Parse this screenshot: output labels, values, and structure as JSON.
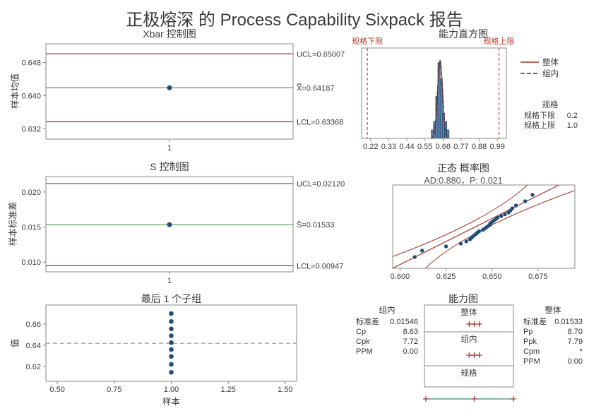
{
  "title": "正极熔深 的 Process Capability Sixpack 报告",
  "colors": {
    "limit_line": "#a93226",
    "center_line": "#4f9a5e",
    "point": "#1f4e79",
    "bar_fill": "#5b87b5",
    "bar_edge": "#27496d",
    "spec": "#c0392b",
    "curve_overall": "#a93226",
    "curve_within": "#3a3a3a",
    "band": "#a93226",
    "interval": "#a93226",
    "spec_line": "#3d8a8a",
    "axis": "#8a8a8a",
    "text": "#3b3b3b"
  },
  "chart_data": [
    {
      "id": "xbar",
      "type": "line",
      "title": "Xbar 控制图",
      "ylabel": "样本均值",
      "ylim": [
        0.6295,
        0.6525
      ],
      "lines": [
        {
          "name": "UCL",
          "role": "limit",
          "value": 0.65007,
          "label": "UCL=0.65007"
        },
        {
          "name": "CL",
          "role": "center",
          "value": 0.64187,
          "label": "X̿=0.64187"
        },
        {
          "name": "LCL",
          "role": "limit",
          "value": 0.63368,
          "label": "LCL=0.63368"
        }
      ],
      "yticks": [
        {
          "v": 0.632,
          "label": "0.632"
        },
        {
          "v": 0.64,
          "label": "0.640"
        },
        {
          "v": 0.648,
          "label": "0.648"
        }
      ],
      "xticks": [
        "1"
      ],
      "points": [
        {
          "x": 1,
          "y": 0.64187
        }
      ]
    },
    {
      "id": "hist",
      "type": "histogram",
      "title": "能力直方图",
      "xlim": [
        0.165,
        1.045
      ],
      "lsl": {
        "label": "规格下限",
        "value": 0.2
      },
      "usl": {
        "label": "规格上限",
        "value": 1.0
      },
      "xticks": [
        {
          "v": 0.22,
          "label": "0.22"
        },
        {
          "v": 0.33,
          "label": "0.33"
        },
        {
          "v": 0.44,
          "label": "0.44"
        },
        {
          "v": 0.55,
          "label": "0.55"
        },
        {
          "v": 0.66,
          "label": "0.66"
        },
        {
          "v": 0.77,
          "label": "0.77"
        },
        {
          "v": 0.88,
          "label": "0.88"
        },
        {
          "v": 0.99,
          "label": "0.99"
        }
      ],
      "bins": {
        "start": 0.5885,
        "width": 0.0135,
        "counts": [
          1,
          2,
          5,
          9,
          7,
          3,
          2,
          1
        ]
      },
      "curves": [
        {
          "name": "整体",
          "mean": 0.6419,
          "sd": 0.01533,
          "style": "solid"
        },
        {
          "name": "组内",
          "mean": 0.6419,
          "sd": 0.01546,
          "style": "dashed"
        }
      ],
      "legend": [
        {
          "label": "整体",
          "style": "solid"
        },
        {
          "label": "组内",
          "style": "dashed"
        }
      ],
      "specs": {
        "header": "规格",
        "rows": [
          [
            "规格下限",
            "0.2"
          ],
          [
            "规格上限",
            "1.0"
          ]
        ]
      }
    },
    {
      "id": "schart",
      "type": "line",
      "title": "S 控制图",
      "ylabel": "样本标准差",
      "ylim": [
        0.0086,
        0.0222
      ],
      "lines": [
        {
          "name": "UCL",
          "role": "limit",
          "value": 0.0212,
          "label": "UCL=0.02120"
        },
        {
          "name": "CL",
          "role": "center",
          "value": 0.01533,
          "label": "S̄=0.01533"
        },
        {
          "name": "LCL",
          "role": "limit",
          "value": 0.00947,
          "label": "LCL=0.00947"
        }
      ],
      "yticks": [
        {
          "v": 0.01,
          "label": "0.010"
        },
        {
          "v": 0.015,
          "label": "0.015"
        },
        {
          "v": 0.02,
          "label": "0.020"
        }
      ],
      "xticks": [
        "1"
      ],
      "points": [
        {
          "x": 1,
          "y": 0.01533
        }
      ]
    },
    {
      "id": "prob",
      "type": "scatter",
      "title": "正态 概率图",
      "subtitle": "AD:0.880，P: 0.021",
      "xlim": [
        0.596,
        0.695
      ],
      "zlim": [
        -3.0,
        2.9
      ],
      "fit": {
        "mean": 0.6419,
        "sd": 0.01533
      },
      "band": {
        "base": 0.007,
        "quad": 0.0012
      },
      "xticks": [
        {
          "v": 0.6,
          "label": "0.600"
        },
        {
          "v": 0.625,
          "label": "0.625"
        },
        {
          "v": 0.65,
          "label": "0.650"
        },
        {
          "v": 0.675,
          "label": "0.675"
        }
      ],
      "points": [
        [
          -2.2,
          0.608
        ],
        [
          -1.75,
          0.612
        ],
        [
          -1.45,
          0.625
        ],
        [
          -1.25,
          0.633
        ],
        [
          -1.1,
          0.636
        ],
        [
          -0.95,
          0.638
        ],
        [
          -0.82,
          0.639
        ],
        [
          -0.7,
          0.64
        ],
        [
          -0.59,
          0.641
        ],
        [
          -0.48,
          0.642
        ],
        [
          -0.38,
          0.643
        ],
        [
          -0.28,
          0.645
        ],
        [
          -0.19,
          0.646
        ],
        [
          -0.09,
          0.647
        ],
        [
          0.0,
          0.648
        ],
        [
          0.09,
          0.649
        ],
        [
          0.19,
          0.649
        ],
        [
          0.28,
          0.65
        ],
        [
          0.38,
          0.651
        ],
        [
          0.48,
          0.652
        ],
        [
          0.59,
          0.653
        ],
        [
          0.7,
          0.655
        ],
        [
          0.82,
          0.657
        ],
        [
          0.95,
          0.659
        ],
        [
          1.1,
          0.66
        ],
        [
          1.25,
          0.661
        ],
        [
          1.45,
          0.663
        ],
        [
          1.75,
          0.668
        ],
        [
          2.2,
          0.672
        ]
      ]
    },
    {
      "id": "last",
      "type": "scatter",
      "title": "最后 1 个子组",
      "xlabel": "样本",
      "ylabel": "值",
      "xlim": [
        0.45,
        1.55
      ],
      "ylim": [
        0.606,
        0.678
      ],
      "center": 0.64187,
      "yticks": [
        {
          "v": 0.62,
          "label": "0.62"
        },
        {
          "v": 0.64,
          "label": "0.64"
        },
        {
          "v": 0.66,
          "label": "0.66"
        }
      ],
      "xticks": [
        {
          "v": 0.5,
          "label": "0.50"
        },
        {
          "v": 0.75,
          "label": "0.75"
        },
        {
          "v": 1.0,
          "label": "1.00"
        },
        {
          "v": 1.25,
          "label": "1.25"
        },
        {
          "v": 1.5,
          "label": "1.50"
        }
      ],
      "points": {
        "x": 1.0,
        "values": [
          0.67,
          0.6625,
          0.6555,
          0.649,
          0.6425,
          0.636,
          0.6295,
          0.622,
          0.6145
        ]
      }
    },
    {
      "id": "cap",
      "type": "table",
      "title": "能力图",
      "scale": {
        "min": 0.2,
        "max": 1.0
      },
      "sections": [
        {
          "label": "整体"
        },
        {
          "label": "组内"
        },
        {
          "label": "规格"
        }
      ],
      "overall_interval": {
        "low": 0.596,
        "mid": 0.6419,
        "high": 0.688
      },
      "within_interval": {
        "low": 0.5955,
        "mid": 0.6419,
        "high": 0.6883
      },
      "spec_interval": {
        "low": 0.2,
        "mid": 0.6419,
        "high": 1.0
      },
      "within_stats": {
        "header": "组内",
        "rows": [
          [
            "标准差",
            "0.01546"
          ],
          [
            "Cp",
            "8.63"
          ],
          [
            "Cpk",
            "7.72"
          ],
          [
            "PPM",
            "0.00"
          ]
        ]
      },
      "overall_stats": {
        "header": "整体",
        "rows": [
          [
            "标准差",
            "0.01533"
          ],
          [
            "Pp",
            "8.70"
          ],
          [
            "Ppk",
            "7.79"
          ],
          [
            "Cpm",
            "*"
          ],
          [
            "PPM",
            "0.00"
          ]
        ]
      }
    }
  ]
}
